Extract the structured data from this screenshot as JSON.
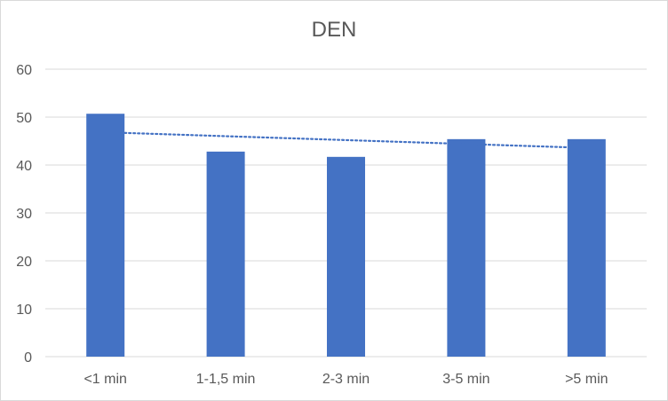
{
  "chart_data": {
    "type": "bar",
    "title": "DEN",
    "categories": [
      "<1 min",
      "1-1,5 min",
      "2-3 min",
      "3-5 min",
      ">5 min"
    ],
    "series": [
      {
        "values": [
          50.7,
          42.8,
          41.7,
          45.4,
          45.4
        ]
      }
    ],
    "trendline": {
      "type": "linear",
      "style": "dotted",
      "values": [
        46.7,
        45.9,
        45.2,
        44.5,
        43.7
      ]
    },
    "ylim": [
      0,
      60
    ],
    "yticks": [
      0,
      10,
      20,
      30,
      40,
      50,
      60
    ],
    "grid": true,
    "legend": "none",
    "colors": {
      "bar": "#4472C4",
      "grid": "#d9d9d9",
      "trendline": "#4472C4",
      "text": "#595959"
    }
  }
}
